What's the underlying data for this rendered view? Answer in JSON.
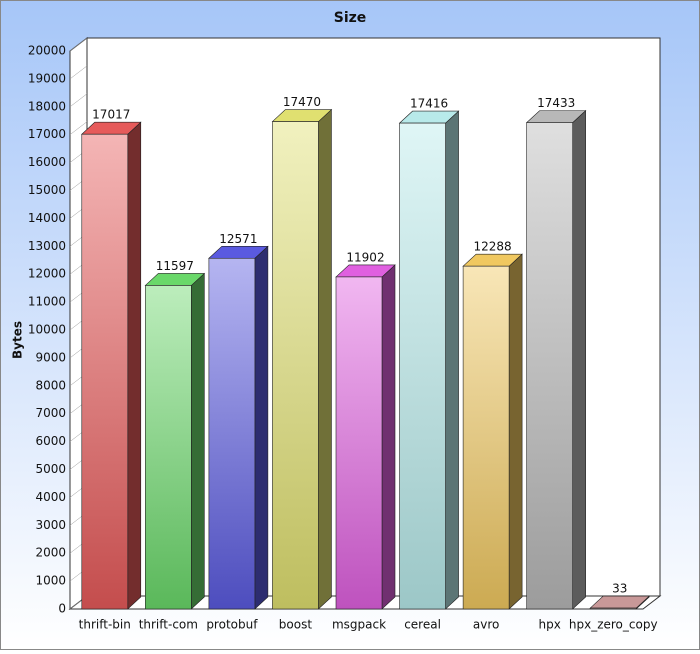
{
  "chart_data": {
    "type": "bar3d",
    "title": "Size",
    "y_label": "Bytes",
    "categories": [
      "thrift-bin",
      "thrift-com",
      "protobuf",
      "boost",
      "msgpack",
      "cereal",
      "avro",
      "hpx",
      "hpx_zero_copy"
    ],
    "values": [
      17017,
      11597,
      12571,
      17470,
      11902,
      17416,
      12288,
      17433,
      33
    ],
    "colors": [
      "#e65a5a",
      "#6ad86a",
      "#5a5ae0",
      "#e0e070",
      "#e060e0",
      "#b8eaea",
      "#f0c860",
      "#b8b8b8",
      "#c89898"
    ],
    "ylim": [
      0,
      20000
    ],
    "yticks": [
      0,
      1000,
      2000,
      3000,
      4000,
      5000,
      6000,
      7000,
      8000,
      9000,
      10000,
      11000,
      12000,
      13000,
      14000,
      15000,
      16000,
      17000,
      18000,
      19000,
      20000
    ]
  }
}
